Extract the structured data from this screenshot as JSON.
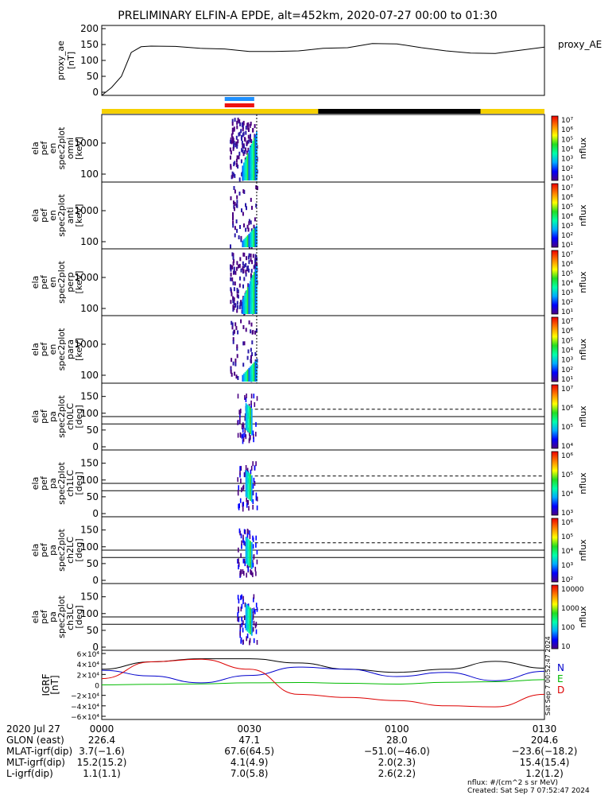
{
  "chart_data": {
    "type": "heatmap",
    "title": "PRELIMINARY ELFIN-A EPDE, alt=452km, 2020-07-27 00:00 to 01:30",
    "x_ticks": [
      "0000",
      "0030",
      "0100",
      "0130"
    ],
    "x_range_min": [
      0,
      90
    ],
    "panels": [
      {
        "id": "proxy_ae",
        "type": "line",
        "ylabel": [
          "proxy_ae",
          "[nT]"
        ],
        "right_label": "proxy_AE",
        "ylim": [
          -10,
          210
        ],
        "yticks": [
          0,
          50,
          100,
          150,
          200
        ],
        "x_min": [
          0,
          2,
          4,
          6,
          8,
          10,
          15,
          20,
          25,
          30,
          35,
          40,
          45,
          50,
          55,
          60,
          65,
          70,
          75,
          80,
          85,
          90
        ],
        "values": [
          -20,
          15,
          50,
          125,
          143,
          145,
          144,
          138,
          136,
          128,
          128,
          130,
          138,
          140,
          153,
          152,
          140,
          130,
          123,
          122,
          132,
          142
        ]
      },
      {
        "id": "omni",
        "type": "spectrogram",
        "ylabel": [
          "ela",
          "pef",
          "en",
          "spec2plot",
          "omni",
          "[keV]"
        ],
        "yticks": [
          "1000",
          "100"
        ],
        "cbar_ticks": [
          "10⁷",
          "10⁶",
          "10⁵",
          "10⁴",
          "10³",
          "10²",
          "10¹"
        ],
        "cbar_label": "nflux"
      },
      {
        "id": "anti",
        "type": "spectrogram",
        "ylabel": [
          "ela",
          "pef",
          "en",
          "spec2plot",
          "anti",
          "[keV]"
        ],
        "yticks": [
          "1000",
          "100"
        ],
        "cbar_ticks": [
          "10⁷",
          "10⁶",
          "10⁵",
          "10⁴",
          "10³",
          "10²",
          "10¹"
        ],
        "cbar_label": "nflux"
      },
      {
        "id": "perp",
        "type": "spectrogram",
        "ylabel": [
          "ela",
          "pef",
          "en",
          "spec2plot",
          "perp",
          "[keV]"
        ],
        "yticks": [
          "1000",
          "100"
        ],
        "cbar_ticks": [
          "10⁷",
          "10⁶",
          "10⁵",
          "10⁴",
          "10³",
          "10²",
          "10¹"
        ],
        "cbar_label": "nflux"
      },
      {
        "id": "para",
        "type": "spectrogram",
        "ylabel": [
          "ela",
          "pef",
          "en",
          "spec2plot",
          "para",
          "[keV]"
        ],
        "yticks": [
          "1000",
          "100"
        ],
        "cbar_ticks": [
          "10⁷",
          "10⁶",
          "10⁵",
          "10⁴",
          "10³",
          "10²",
          "10¹"
        ],
        "cbar_label": "nflux"
      },
      {
        "id": "ch0LC",
        "type": "pitch-angle",
        "ylabel": [
          "ela",
          "pef",
          "pa",
          "spec2plot",
          "ch0LC",
          "[deg]"
        ],
        "yticks": [
          "150",
          "100",
          "50",
          "0"
        ],
        "cbar_ticks": [
          "10⁷",
          "10⁶",
          "10⁵",
          "10⁴"
        ],
        "cbar_label": "nflux"
      },
      {
        "id": "ch1LC",
        "type": "pitch-angle",
        "ylabel": [
          "ela",
          "pef",
          "pa",
          "spec2plot",
          "ch1LC",
          "[deg]"
        ],
        "yticks": [
          "150",
          "100",
          "50",
          "0"
        ],
        "cbar_ticks": [
          "10⁶",
          "10⁵",
          "10⁴",
          "10³"
        ],
        "cbar_label": "nflux"
      },
      {
        "id": "ch2LC",
        "type": "pitch-angle",
        "ylabel": [
          "ela",
          "pef",
          "pa",
          "spec2plot",
          "ch2LC",
          "[deg]"
        ],
        "yticks": [
          "150",
          "100",
          "50",
          "0"
        ],
        "cbar_ticks": [
          "10⁶",
          "10⁵",
          "10⁴",
          "10³",
          "10²"
        ],
        "cbar_label": "nflux"
      },
      {
        "id": "ch3LC",
        "type": "pitch-angle",
        "ylabel": [
          "ela",
          "pef",
          "pa",
          "spec2plot",
          "ch3LC",
          "[deg]"
        ],
        "yticks": [
          "150",
          "100",
          "50",
          "0"
        ],
        "cbar_ticks": [
          "10000",
          "1000",
          "100",
          "10"
        ],
        "cbar_label": "nflux"
      },
      {
        "id": "igrf",
        "type": "line",
        "ylabel": [
          "IGRF",
          "[nT]"
        ],
        "yticks": [
          "6×10⁴",
          "4×10⁴",
          "2×10⁴",
          "0",
          "−2×10⁴",
          "−4×10⁴",
          "−6×10⁴"
        ],
        "ylim": [
          -60000,
          60000
        ],
        "x_min": [
          0,
          10,
          20,
          30,
          40,
          50,
          60,
          70,
          80,
          90
        ],
        "legend": [
          "N",
          "E",
          "D"
        ],
        "legend_colors": [
          "#0000cc",
          "#00bb00",
          "#dd0000"
        ],
        "series": [
          {
            "name": "total",
            "color": "#000000",
            "values": [
              30000,
              44000,
              50000,
              50000,
              42000,
              30000,
              24000,
              30000,
              45000,
              32000
            ]
          },
          {
            "name": "N",
            "color": "#0000cc",
            "values": [
              28000,
              17000,
              4000,
              18000,
              34000,
              30000,
              16000,
              24000,
              8000,
              26000
            ]
          },
          {
            "name": "E",
            "color": "#00bb00",
            "values": [
              0,
              1000,
              2000,
              4000,
              4500,
              3000,
              1500,
              5000,
              6000,
              10000
            ]
          },
          {
            "name": "D",
            "color": "#dd0000",
            "values": [
              12000,
              44000,
              49000,
              30000,
              -18000,
              -24000,
              -30000,
              -40000,
              -42000,
              -18000
            ]
          }
        ]
      }
    ],
    "sw_bar": {
      "yellow_1": [
        0,
        44
      ],
      "black": [
        44,
        77
      ],
      "yellow_2": [
        77,
        90
      ],
      "blue": [
        25,
        31
      ],
      "red": [
        25,
        31
      ]
    }
  },
  "footer": {
    "rows": [
      {
        "label": "2020 Jul 27",
        "values": [
          "0000",
          "0030",
          "0100",
          "0130"
        ]
      },
      {
        "label": "GLON (east)",
        "values": [
          "226.4",
          "47.1",
          "28.0",
          "204.6"
        ]
      },
      {
        "label": "MLAT-igrf(dip)",
        "values": [
          "3.7(−1.6)",
          "67.6(64.5)",
          "−51.0(−46.0)",
          "−23.6(−18.2)"
        ]
      },
      {
        "label": "MLT-igrf(dip)",
        "values": [
          "15.2(15.2)",
          "4.1(4.9)",
          "2.0(2.3)",
          "15.4(15.4)"
        ]
      },
      {
        "label": "L-igrf(dip)",
        "values": [
          "1.1(1.1)",
          "7.0(5.8)",
          "2.6(2.2)",
          "1.2(1.2)"
        ]
      }
    ],
    "units": "nflux: #/(cm^2 s sr MeV)",
    "created": "Created: Sat Sep  7 07:52:47 2024",
    "side_stamp": "Sat Sep  7 00:52:47 2024"
  }
}
